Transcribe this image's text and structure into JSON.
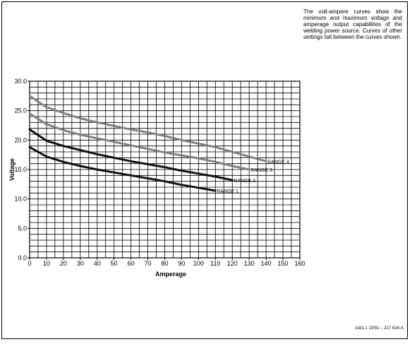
{
  "description": "The volt-ampere curves show the minimum and maximum voltage and amperage output capabilities of the welding power source. Curves of other settings fall between the curves shown.",
  "reference": "ssb1.1 10/91 – 217 624-A",
  "chart_data": {
    "type": "line",
    "xlabel": "Amperage",
    "ylabel": "Voltage",
    "xlim": [
      0,
      160
    ],
    "ylim": [
      0,
      30
    ],
    "x_ticks": [
      0,
      10,
      20,
      30,
      40,
      50,
      60,
      70,
      80,
      90,
      100,
      110,
      120,
      130,
      140,
      150,
      160
    ],
    "y_ticks": [
      0.0,
      5.0,
      10.0,
      15.0,
      20.0,
      25.0,
      30.0
    ],
    "x_tick_labels": [
      "0",
      "10",
      "20",
      "30",
      "40",
      "50",
      "60",
      "70",
      "80",
      "90",
      "100",
      "110",
      "120",
      "130",
      "140",
      "150",
      "160"
    ],
    "y_tick_labels": [
      "0.0",
      "5.0",
      "10.0",
      "15.0",
      "20.0",
      "25.0",
      "30.0"
    ],
    "grid": true,
    "series": [
      {
        "name": "RANGE 1",
        "color": "#111111",
        "x": [
          0,
          10,
          20,
          30,
          40,
          50,
          60,
          70,
          80,
          90,
          100,
          110
        ],
        "y": [
          18.8,
          17.2,
          16.3,
          15.6,
          15.0,
          14.5,
          14.0,
          13.5,
          13.0,
          12.4,
          11.9,
          11.4
        ]
      },
      {
        "name": "RANGE 2",
        "color": "#111111",
        "x": [
          0,
          10,
          20,
          30,
          40,
          50,
          60,
          70,
          80,
          90,
          100,
          110,
          120
        ],
        "y": [
          21.8,
          19.9,
          19.0,
          18.3,
          17.6,
          17.0,
          16.4,
          15.9,
          15.4,
          14.8,
          14.3,
          13.8,
          13.2
        ]
      },
      {
        "name": "RANGE 3",
        "color": "#808080",
        "x": [
          0,
          10,
          20,
          30,
          40,
          50,
          60,
          70,
          80,
          90,
          100,
          110,
          120,
          130
        ],
        "y": [
          24.5,
          22.7,
          21.7,
          20.9,
          20.3,
          19.7,
          19.1,
          18.5,
          17.9,
          17.4,
          16.9,
          16.3,
          15.6,
          15.0
        ]
      },
      {
        "name": "RANGE 4",
        "color": "#808080",
        "x": [
          0,
          10,
          20,
          30,
          40,
          50,
          60,
          70,
          80,
          90,
          100,
          110,
          120,
          130,
          140
        ],
        "y": [
          27.5,
          25.6,
          24.6,
          23.7,
          23.0,
          22.4,
          21.8,
          21.3,
          20.7,
          20.0,
          19.4,
          18.8,
          18.0,
          17.2,
          16.4
        ]
      }
    ]
  }
}
